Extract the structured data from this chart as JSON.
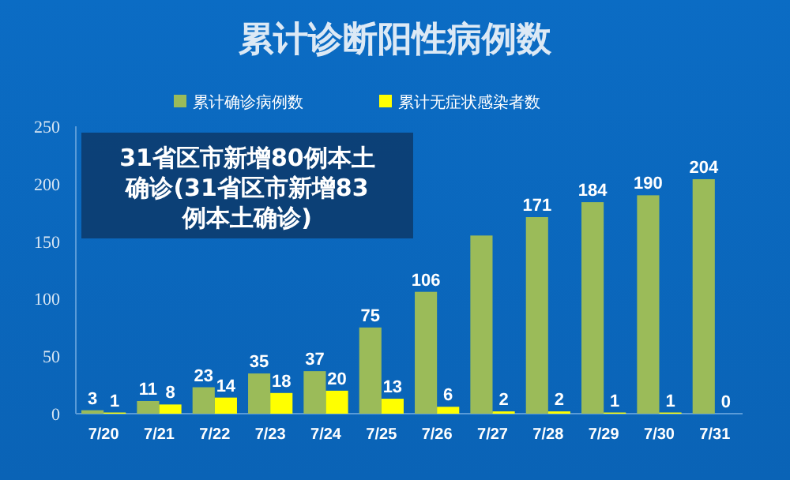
{
  "chart_data": {
    "type": "bar",
    "title": "累计诊断阳性病例数",
    "categories": [
      "7/20",
      "7/21",
      "7/22",
      "7/23",
      "7/24",
      "7/25",
      "7/26",
      "7/27",
      "7/28",
      "7/29",
      "7/30",
      "7/31"
    ],
    "series": [
      {
        "name": "累计确诊病例数",
        "color": "#9bbb59",
        "values": [
          3,
          11,
          23,
          35,
          37,
          75,
          106,
          155,
          171,
          184,
          190,
          204
        ],
        "value_labels": [
          "3",
          "11",
          "23",
          "35",
          "37",
          "75",
          "106",
          null,
          "171",
          "184",
          "190",
          "204"
        ]
      },
      {
        "name": "累计无症状感染者数",
        "color": "#ffff00",
        "values": [
          1,
          8,
          14,
          18,
          20,
          13,
          6,
          2,
          2,
          1,
          1,
          0
        ],
        "value_labels": [
          "1",
          "8",
          "14",
          "18",
          "20",
          "13",
          "6",
          "2",
          "2",
          "1",
          "1",
          "0"
        ]
      }
    ],
    "ylim": [
      0,
      250
    ],
    "yticks": [
      0,
      50,
      100,
      150,
      200,
      250
    ],
    "grid": false,
    "legend": "top",
    "annotations": [
      "31省区市新增80例本土确诊(31省区市新增83例本土确诊)"
    ]
  }
}
